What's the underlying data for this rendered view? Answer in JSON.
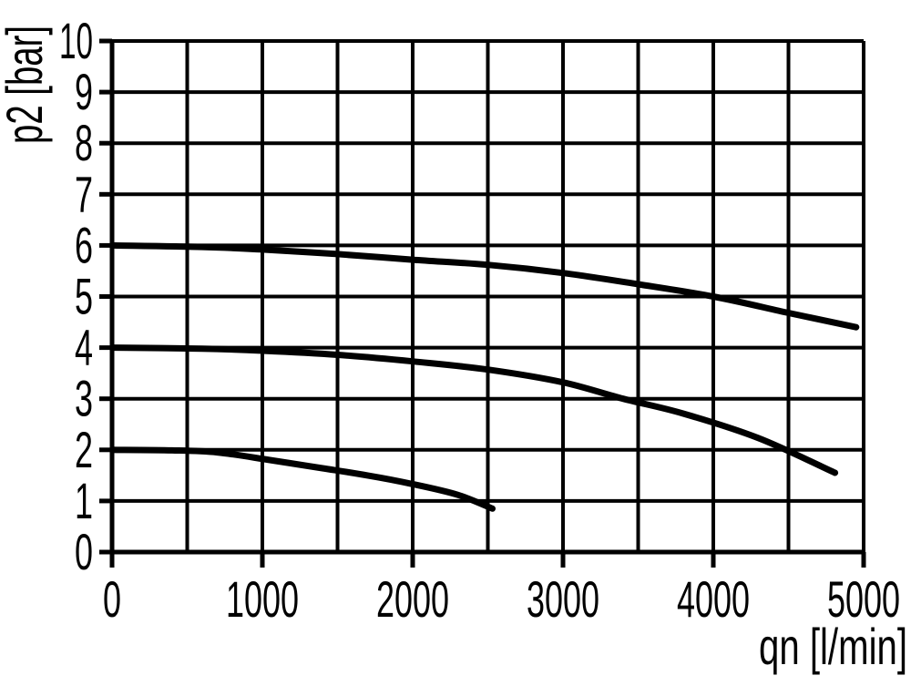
{
  "figure": {
    "background_color": "#ffffff",
    "ink_color": "#000000"
  },
  "chart_data": {
    "type": "line",
    "title": "",
    "xlabel": "qn [l/min]",
    "ylabel": "p2 [bar]",
    "xlim": [
      0,
      5000
    ],
    "ylim": [
      0,
      10
    ],
    "x_tick_values": [
      0,
      1000,
      2000,
      3000,
      4000,
      5000
    ],
    "x_tick_labels": [
      "0",
      "1000",
      "2000",
      "3000",
      "4000",
      "5000"
    ],
    "x_gridline_step": 500,
    "y_tick_values": [
      0,
      1,
      2,
      3,
      4,
      5,
      6,
      7,
      8,
      9,
      10
    ],
    "y_tick_labels": [
      "0",
      "1",
      "2",
      "3",
      "4",
      "5",
      "6",
      "7",
      "8",
      "9",
      "10"
    ],
    "y_gridline_step": 1,
    "grid": "on",
    "legend": "none",
    "series": [
      {
        "name": "curve-6-bar",
        "color": "#000000",
        "points": [
          [
            0,
            6.0
          ],
          [
            600,
            5.97
          ],
          [
            1000,
            5.92
          ],
          [
            1500,
            5.83
          ],
          [
            2000,
            5.72
          ],
          [
            2500,
            5.62
          ],
          [
            3000,
            5.46
          ],
          [
            3500,
            5.24
          ],
          [
            4000,
            5.0
          ],
          [
            4500,
            4.68
          ],
          [
            4950,
            4.4
          ]
        ]
      },
      {
        "name": "curve-4-bar",
        "color": "#000000",
        "points": [
          [
            0,
            4.0
          ],
          [
            600,
            3.98
          ],
          [
            1000,
            3.94
          ],
          [
            1500,
            3.86
          ],
          [
            2000,
            3.73
          ],
          [
            2500,
            3.57
          ],
          [
            3000,
            3.32
          ],
          [
            3400,
            3.0
          ],
          [
            3800,
            2.71
          ],
          [
            4300,
            2.23
          ],
          [
            4810,
            1.55
          ]
        ]
      },
      {
        "name": "curve-2-bar",
        "color": "#000000",
        "points": [
          [
            0,
            2.0
          ],
          [
            400,
            1.99
          ],
          [
            700,
            1.95
          ],
          [
            1050,
            1.8
          ],
          [
            1400,
            1.64
          ],
          [
            1700,
            1.5
          ],
          [
            2000,
            1.33
          ],
          [
            2300,
            1.12
          ],
          [
            2530,
            0.85
          ]
        ]
      }
    ]
  }
}
